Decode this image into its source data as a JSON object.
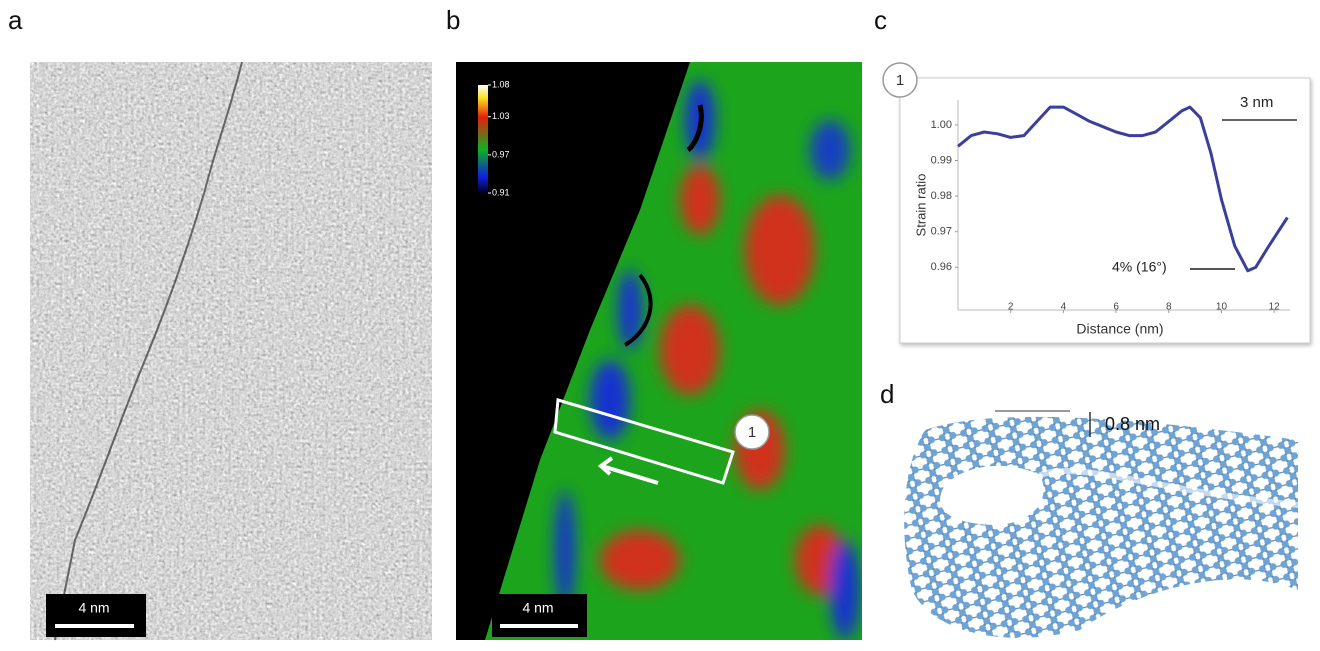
{
  "panels": {
    "a": {
      "label": "a",
      "scale_bar": "4 nm"
    },
    "b": {
      "label": "b",
      "scale_bar": "4 nm",
      "colorbar_ticks": [
        1.08,
        1.03,
        0.97,
        0.91
      ],
      "region_marker": "1"
    },
    "c": {
      "label": "c"
    },
    "d": {
      "label": "d",
      "scale": "0.8 nm"
    }
  },
  "chart_data": {
    "type": "line",
    "region_marker": "1",
    "xlabel": "Distance (nm)",
    "ylabel": "Strain ratio",
    "annotations": [
      "3 nm",
      "4% (16°)"
    ],
    "xlim": [
      0,
      12.6
    ],
    "ylim": [
      0.948,
      1.007
    ],
    "xticks": [
      2,
      4,
      6,
      8,
      10,
      12
    ],
    "yticks": [
      {
        "value": 1,
        "label": "1.00"
      },
      0.99,
      0.98,
      0.97,
      0.96
    ],
    "x": [
      0,
      0.5,
      1,
      1.5,
      2,
      2.5,
      3,
      3.5,
      4,
      4.5,
      5,
      5.5,
      6,
      6.5,
      7,
      7.5,
      8,
      8.5,
      8.8,
      9.2,
      9.6,
      10,
      10.5,
      11,
      11.3,
      11.8,
      12.5
    ],
    "series": [
      {
        "color": "#3b3f9c",
        "values": [
          0.994,
          0.997,
          0.998,
          0.9975,
          0.9965,
          0.997,
          1.001,
          1.005,
          1.005,
          1.003,
          1.001,
          0.9995,
          0.998,
          0.997,
          0.997,
          0.998,
          1.001,
          1.004,
          1.005,
          1.002,
          0.992,
          0.979,
          0.966,
          0.959,
          0.96,
          0.966,
          0.974
        ]
      }
    ]
  }
}
